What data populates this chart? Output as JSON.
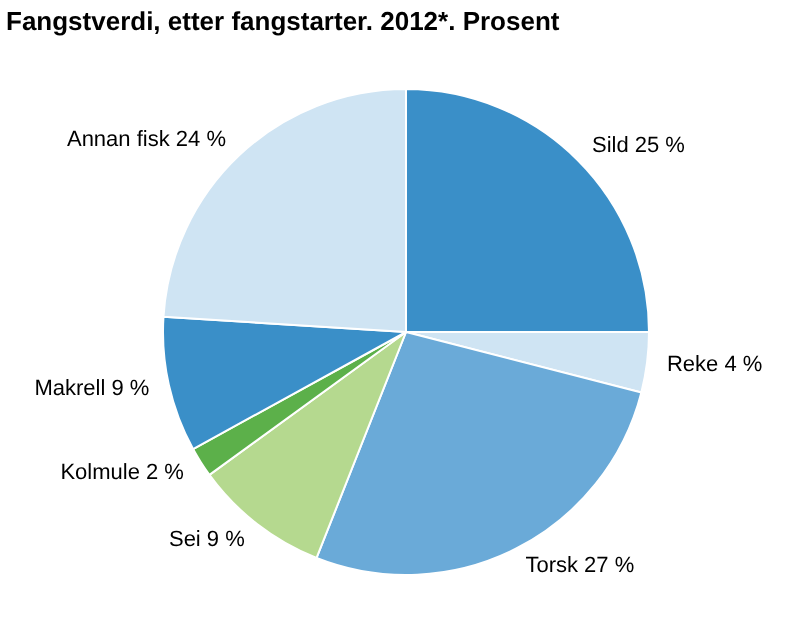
{
  "chart_data": {
    "type": "pie",
    "title": "Fangstverdi, etter fangstarter. 2012*. Prosent",
    "categories": [
      "Sild",
      "Reke",
      "Torsk",
      "Sei",
      "Kolmule",
      "Makrell",
      "Annan fisk"
    ],
    "values": [
      25,
      4,
      27,
      9,
      2,
      9,
      24
    ],
    "colors": [
      "#3a8fc8",
      "#cfe4f3",
      "#6aaad8",
      "#b5d98f",
      "#5cb04a",
      "#3a8fc8",
      "#cfe4f3"
    ],
    "value_labels": [
      "25 %",
      "4 %",
      "27 %",
      "9 %",
      "2 %",
      "9 %",
      "24 %"
    ],
    "legend": false
  }
}
